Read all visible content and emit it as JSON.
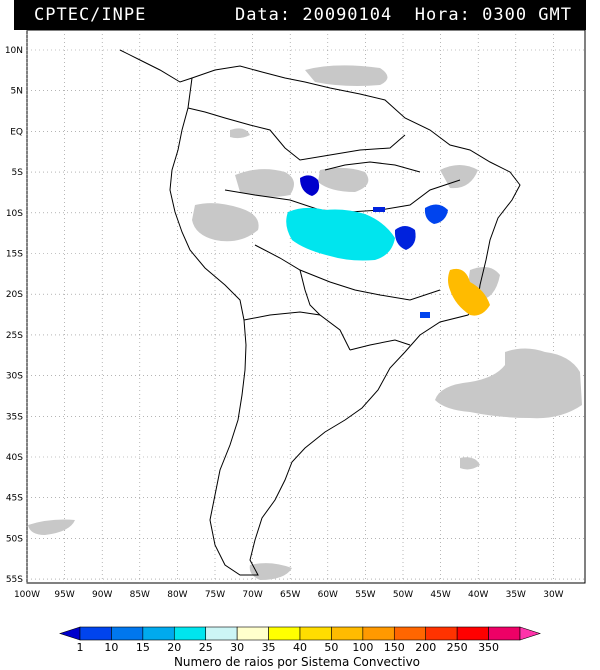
{
  "header": {
    "organization": "CPTEC/INPE",
    "datetime": "Data: 20090104  Hora: 0300 GMT"
  },
  "map": {
    "lat_labels": [
      "10N",
      "5N",
      "EQ",
      "5S",
      "10S",
      "15S",
      "20S",
      "25S",
      "30S",
      "35S",
      "40S",
      "45S",
      "50S",
      "55S"
    ],
    "lon_labels": [
      "100W",
      "95W",
      "90W",
      "85W",
      "80W",
      "75W",
      "70W",
      "65W",
      "60W",
      "55W",
      "50W",
      "45W",
      "40W",
      "35W",
      "30W"
    ]
  },
  "colorbar": {
    "labels": [
      "1",
      "10",
      "15",
      "20",
      "25",
      "30",
      "35",
      "40",
      "50",
      "100",
      "150",
      "200",
      "250",
      "350"
    ],
    "colors": [
      "#0000cc",
      "#0044ee",
      "#0077ee",
      "#00aaee",
      "#00e5ee",
      "#ccf5f5",
      "#ffffcc",
      "#ffff00",
      "#ffdd00",
      "#ffbb00",
      "#ff9900",
      "#ff6600",
      "#ff3300",
      "#ff0000",
      "#ee0066",
      "#ff33aa"
    ],
    "title": "Numero de raios por Sistema Convectivo"
  }
}
